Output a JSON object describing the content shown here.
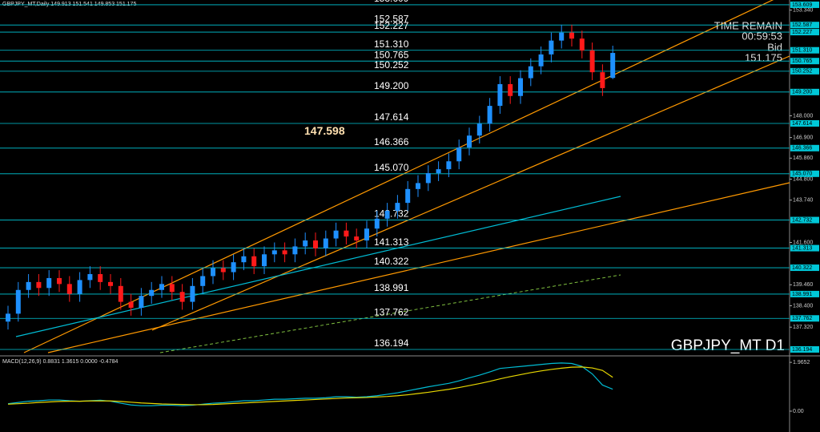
{
  "chart_data": [
    {
      "type": "candlestick",
      "title": "GBPJPY_MT,Daily  149.913 151.541 149.853 151.175",
      "info": [
        "TIME REMAIN",
        "00:59:53",
        "Bid",
        "151.175"
      ],
      "watermark": "GBPJPY_MT D1",
      "annotation": {
        "value": 147.598,
        "label": "147.598"
      },
      "ylim": [
        135.91,
        153.85
      ],
      "yticks": [
        {
          "value": 153.34,
          "label": "153.340"
        },
        {
          "value": 148.0,
          "label": "148.000"
        },
        {
          "value": 146.9,
          "label": "146.900"
        },
        {
          "value": 145.86,
          "label": "145.860"
        },
        {
          "value": 144.8,
          "label": "144.800"
        },
        {
          "value": 143.74,
          "label": "143.740"
        },
        {
          "value": 141.6,
          "label": "141.600"
        },
        {
          "value": 139.46,
          "label": "139.460"
        },
        {
          "value": 138.4,
          "label": "138.400"
        },
        {
          "value": 137.32,
          "label": "137.320"
        }
      ],
      "levels": [
        {
          "value": 153.609,
          "label": "153.609"
        },
        {
          "value": 152.587,
          "label": "152.587"
        },
        {
          "value": 152.227,
          "label": "152.227"
        },
        {
          "value": 151.31,
          "label": "151.310"
        },
        {
          "value": 150.765,
          "label": "150.765"
        },
        {
          "value": 150.252,
          "label": "150.252"
        },
        {
          "value": 149.2,
          "label": "149.200"
        },
        {
          "value": 147.614,
          "label": "147.614"
        },
        {
          "value": 146.366,
          "label": "146.366"
        },
        {
          "value": 145.07,
          "label": "145.070"
        },
        {
          "value": 142.732,
          "label": "142.732"
        },
        {
          "value": 141.313,
          "label": "141.313"
        },
        {
          "value": 140.322,
          "label": "140.322"
        },
        {
          "value": 138.991,
          "label": "138.991"
        },
        {
          "value": 137.762,
          "label": "137.762"
        },
        {
          "value": 136.194,
          "label": "136.194"
        }
      ],
      "up_color": "#1e90ff",
      "down_color": "#ff1a1a",
      "level_color": "#00c8d8",
      "open": [
        137.6,
        138.0,
        139.2,
        139.6,
        139.3,
        139.8,
        139.5,
        139.0,
        139.7,
        140.0,
        139.6,
        139.4,
        138.6,
        138.3,
        138.9,
        139.2,
        139.5,
        139.1,
        138.6,
        139.4,
        139.9,
        140.3,
        140.1,
        140.6,
        140.9,
        140.4,
        141.0,
        141.2,
        141.0,
        141.4,
        141.7,
        141.3,
        141.8,
        142.2,
        141.9,
        141.7,
        142.3,
        142.8,
        143.2,
        143.6,
        144.3,
        144.6,
        145.1,
        145.3,
        145.7,
        146.4,
        147.0,
        147.6,
        148.5,
        149.6,
        149.0,
        149.9,
        150.5,
        151.1,
        151.8,
        152.2,
        151.9,
        151.3,
        150.2,
        149.913
      ],
      "high": [
        138.4,
        139.6,
        140.0,
        140.0,
        140.2,
        140.2,
        139.9,
        140.1,
        140.4,
        140.4,
        140.0,
        139.8,
        139.0,
        139.3,
        139.6,
        139.9,
        139.9,
        139.5,
        139.8,
        140.3,
        140.7,
        140.7,
        141.0,
        141.3,
        141.3,
        141.4,
        141.6,
        141.6,
        141.8,
        142.1,
        142.1,
        142.2,
        142.6,
        142.6,
        142.3,
        142.7,
        143.2,
        143.6,
        144.0,
        144.7,
        145.0,
        145.5,
        145.7,
        146.1,
        146.8,
        147.4,
        148.0,
        148.9,
        150.0,
        150.0,
        150.3,
        150.9,
        151.5,
        152.2,
        152.6,
        152.6,
        152.3,
        151.7,
        150.6,
        151.541
      ],
      "low": [
        137.2,
        137.6,
        138.8,
        138.9,
        138.9,
        139.1,
        138.6,
        138.6,
        139.3,
        139.2,
        139.0,
        138.2,
        137.9,
        137.9,
        138.5,
        138.8,
        138.7,
        138.2,
        138.2,
        139.0,
        139.5,
        139.7,
        139.7,
        140.2,
        140.0,
        140.0,
        140.6,
        140.6,
        140.6,
        141.0,
        140.9,
        140.9,
        141.4,
        141.5,
        141.3,
        141.3,
        141.9,
        142.4,
        142.8,
        143.2,
        143.9,
        144.2,
        144.7,
        144.9,
        145.3,
        146.0,
        146.6,
        147.2,
        148.1,
        148.6,
        148.6,
        149.5,
        150.1,
        150.7,
        151.4,
        151.5,
        150.9,
        149.8,
        149.0,
        149.853
      ],
      "close": [
        138.0,
        139.2,
        139.6,
        139.3,
        139.8,
        139.5,
        139.0,
        139.7,
        140.0,
        139.6,
        139.4,
        138.6,
        138.3,
        138.9,
        139.2,
        139.5,
        139.1,
        138.6,
        139.4,
        139.9,
        140.3,
        140.1,
        140.6,
        140.9,
        140.4,
        141.0,
        141.2,
        141.0,
        141.4,
        141.7,
        141.3,
        141.8,
        142.2,
        141.9,
        141.7,
        142.3,
        142.8,
        143.2,
        143.6,
        144.3,
        144.6,
        145.1,
        145.3,
        145.7,
        146.4,
        147.0,
        147.6,
        148.5,
        149.6,
        149.0,
        149.9,
        150.5,
        151.1,
        151.8,
        152.2,
        151.9,
        151.3,
        150.2,
        149.4,
        151.175
      ]
    },
    {
      "type": "line",
      "title": "MACD(12,26,9) 0.8831 1.3615 0.0000 -0.4784",
      "ylim": [
        -0.84,
        2.13
      ],
      "yticks": [
        1.9652,
        {
          "value": 0,
          "label": "0.00"
        }
      ],
      "series": [
        {
          "color": "#00bcd4",
          "values": [
            0.3,
            0.35,
            0.4,
            0.42,
            0.45,
            0.45,
            0.42,
            0.4,
            0.42,
            0.44,
            0.4,
            0.32,
            0.25,
            0.22,
            0.22,
            0.24,
            0.24,
            0.22,
            0.24,
            0.28,
            0.32,
            0.34,
            0.38,
            0.42,
            0.42,
            0.45,
            0.48,
            0.48,
            0.5,
            0.52,
            0.52,
            0.54,
            0.58,
            0.58,
            0.56,
            0.58,
            0.62,
            0.68,
            0.74,
            0.82,
            0.9,
            0.98,
            1.05,
            1.12,
            1.22,
            1.34,
            1.45,
            1.58,
            1.72,
            1.76,
            1.8,
            1.84,
            1.88,
            1.92,
            1.94,
            1.92,
            1.8,
            1.5,
            1.05,
            0.8831
          ]
        },
        {
          "color": "#e8d800",
          "values": [
            0.28,
            0.3,
            0.32,
            0.35,
            0.37,
            0.39,
            0.4,
            0.4,
            0.41,
            0.41,
            0.41,
            0.39,
            0.36,
            0.33,
            0.31,
            0.29,
            0.28,
            0.27,
            0.26,
            0.26,
            0.27,
            0.29,
            0.31,
            0.33,
            0.35,
            0.37,
            0.39,
            0.41,
            0.43,
            0.45,
            0.47,
            0.49,
            0.51,
            0.53,
            0.54,
            0.55,
            0.57,
            0.59,
            0.62,
            0.66,
            0.71,
            0.76,
            0.82,
            0.88,
            0.95,
            1.03,
            1.11,
            1.2,
            1.3,
            1.39,
            1.47,
            1.55,
            1.62,
            1.68,
            1.73,
            1.77,
            1.78,
            1.74,
            1.64,
            1.3615
          ]
        }
      ]
    }
  ]
}
